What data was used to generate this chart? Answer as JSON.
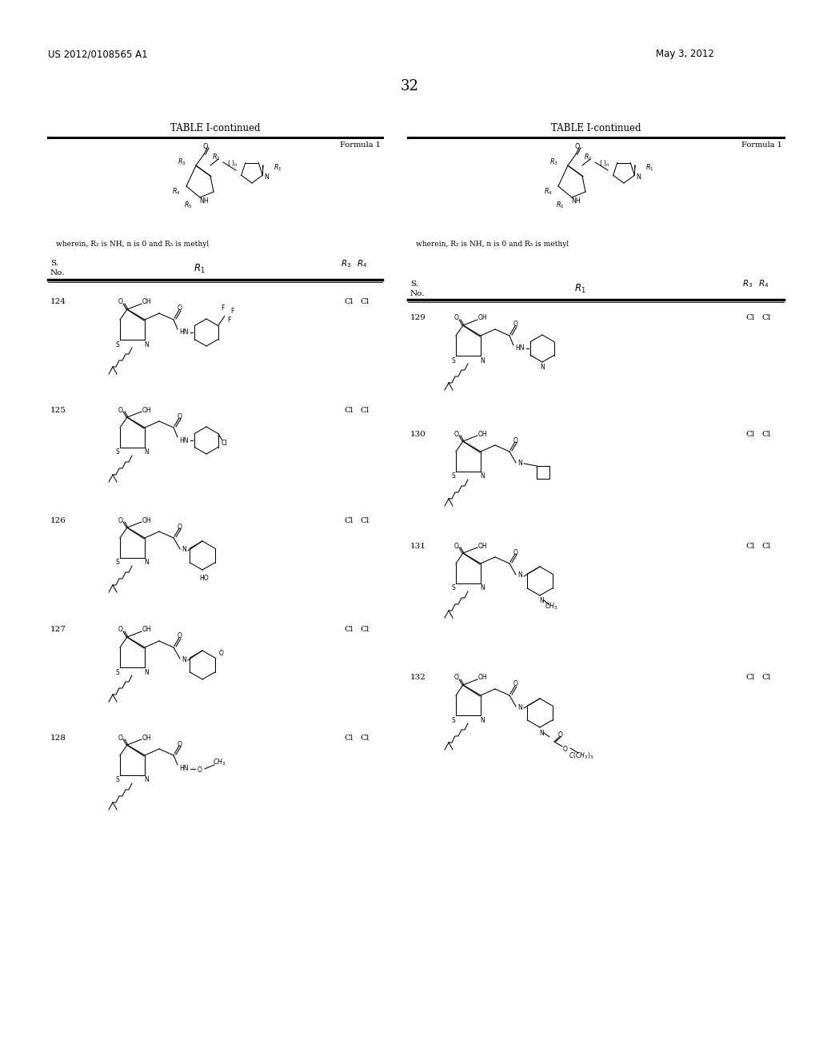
{
  "patent_number": "US 2012/0108565 A1",
  "patent_date": "May 3, 2012",
  "page_number": "32",
  "table_title": "TABLE I-continued",
  "formula_label": "Formula 1",
  "bg_color": "#ffffff",
  "text_color": "#000000",
  "left_entries": [
    "124",
    "125",
    "126",
    "127",
    "128"
  ],
  "right_entries": [
    "129",
    "130",
    "131",
    "132"
  ],
  "r3r4_value": "Cl   Cl",
  "header_note": "wherein, R₂ is NH, n is 0 and R₅ is methyl"
}
